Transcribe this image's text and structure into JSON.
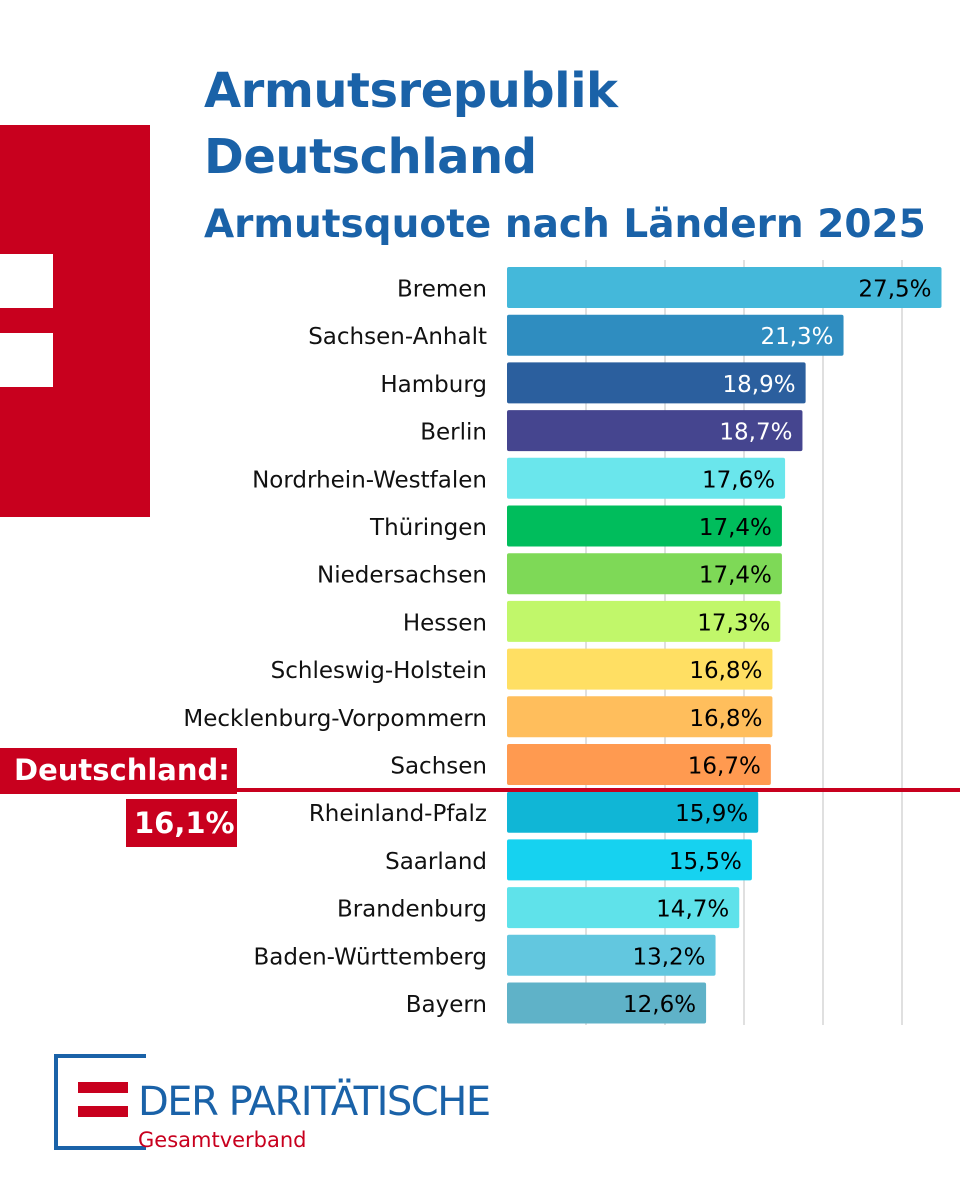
{
  "title": "Armutsrepublik Deutschland",
  "subtitle": "Armutsquote nach Ländern 2025",
  "average": {
    "label": "Deutschland:",
    "value_text": "16,1%",
    "value": 16.1
  },
  "logo": {
    "name": "DER PARITÄTISCHE",
    "sub": "Gesamtverband"
  },
  "colors": {
    "brand_blue": "#1a62a8",
    "brand_red": "#c8001e"
  },
  "chart_data": {
    "type": "bar",
    "orientation": "horizontal",
    "title": "Armutsquote nach Ländern 2025",
    "xlim": [
      0,
      35
    ],
    "grid": true,
    "categories": [
      "Bremen",
      "Sachsen-Anhalt",
      "Hamburg",
      "Berlin",
      "Nordrhein-Westfalen",
      "Thüringen",
      "Niedersachsen",
      "Hessen",
      "Schleswig-Holstein",
      "Mecklenburg-Vorpommern",
      "Sachsen",
      "Rheinland-Pfalz",
      "Saarland",
      "Brandenburg",
      "Baden-Württemberg",
      "Bayern"
    ],
    "values": [
      27.5,
      21.3,
      18.9,
      18.7,
      17.6,
      17.4,
      17.4,
      17.3,
      16.8,
      16.8,
      16.7,
      15.9,
      15.5,
      14.7,
      13.2,
      12.6
    ],
    "value_labels": [
      "27,5%",
      "21,3%",
      "18,9%",
      "18,7%",
      "17,6%",
      "17,4%",
      "17,4%",
      "17,3%",
      "16,8%",
      "16,8%",
      "16,7%",
      "15,9%",
      "15,5%",
      "14,7%",
      "13,2%",
      "12,6%"
    ],
    "bar_colors": [
      "#44b8da",
      "#2f8dc0",
      "#2b5f9e",
      "#45458f",
      "#6ae6ec",
      "#00bd5c",
      "#7ed957",
      "#c1f76a",
      "#ffdf63",
      "#ffbe5c",
      "#ff9a50",
      "#10b6d6",
      "#16d2f0",
      "#5fe2ea",
      "#62c7df",
      "#5fb2c8"
    ],
    "label_colors": [
      "#000000",
      "#ffffff",
      "#ffffff",
      "#ffffff",
      "#000000",
      "#000000",
      "#000000",
      "#000000",
      "#000000",
      "#000000",
      "#000000",
      "#000000",
      "#000000",
      "#000000",
      "#000000",
      "#000000"
    ],
    "reference_line": {
      "label": "Deutschland:",
      "value": 16.1
    }
  }
}
